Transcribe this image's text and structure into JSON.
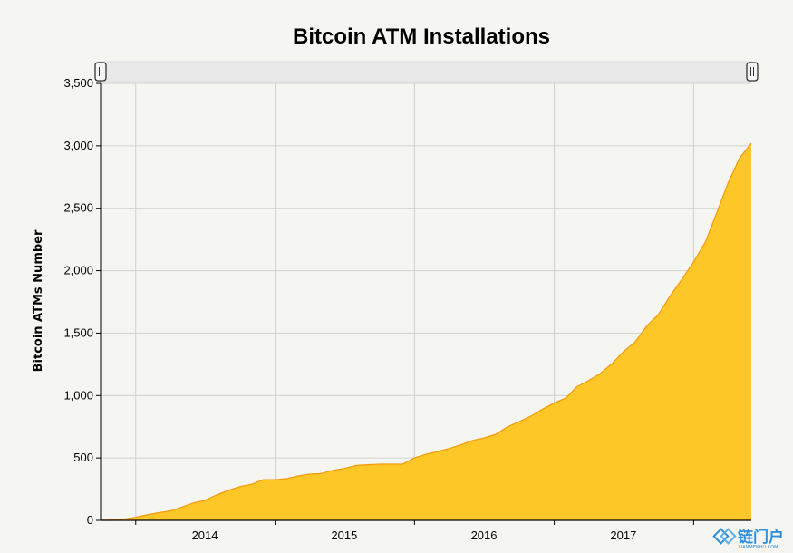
{
  "chart_data": {
    "type": "area",
    "title": "Bitcoin ATM Installations",
    "xlabel": "",
    "ylabel": "Bitcoin ATMs Number",
    "ylim": [
      0,
      3500
    ],
    "yticks": [
      "0",
      "500",
      "1,000",
      "1,500",
      "2,000",
      "2,500",
      "3,000",
      "3,500"
    ],
    "xtick_labels": [
      "2014",
      "2015",
      "2016",
      "2017"
    ],
    "grid": true,
    "colors": {
      "fill": "#fec728",
      "line": "#f39c12",
      "grid": "#d0d0cc",
      "background": "#f5f5f1"
    },
    "series": [
      {
        "x": [
          "2013-10-01",
          "2013-11-01",
          "2013-12-01",
          "2014-01-01",
          "2014-02-01",
          "2014-03-01",
          "2014-04-01",
          "2014-05-01",
          "2014-06-01",
          "2014-07-01",
          "2014-08-01",
          "2014-09-01",
          "2014-10-01",
          "2014-11-01",
          "2014-12-01",
          "2015-01-01",
          "2015-02-01",
          "2015-03-01",
          "2015-04-01",
          "2015-05-01",
          "2015-06-01",
          "2015-07-01",
          "2015-08-01",
          "2015-09-01",
          "2015-10-01",
          "2015-11-01",
          "2015-12-01",
          "2016-01-01",
          "2016-02-01",
          "2016-03-01",
          "2016-04-01",
          "2016-05-01",
          "2016-06-01",
          "2016-07-01",
          "2016-08-01",
          "2016-09-01",
          "2016-10-01",
          "2016-11-01",
          "2016-12-01",
          "2017-01-01",
          "2017-02-01",
          "2017-03-01",
          "2017-04-01",
          "2017-05-01",
          "2017-06-01",
          "2017-07-01",
          "2017-08-01",
          "2017-09-01",
          "2017-10-01",
          "2017-11-01",
          "2017-12-01",
          "2018-01-01",
          "2018-02-01",
          "2018-03-01",
          "2018-04-01",
          "2018-05-01",
          "2018-06-01"
        ],
        "values": [
          0,
          2,
          10,
          25,
          45,
          60,
          75,
          105,
          140,
          160,
          205,
          240,
          270,
          290,
          325,
          325,
          335,
          355,
          370,
          375,
          400,
          415,
          440,
          445,
          450,
          450,
          450,
          500,
          530,
          550,
          575,
          605,
          640,
          660,
          690,
          750,
          790,
          835,
          890,
          940,
          980,
          1070,
          1120,
          1175,
          1255,
          1350,
          1430,
          1560,
          1650,
          1800,
          1930,
          2070,
          2230,
          2450,
          2700,
          2900,
          3020
        ]
      }
    ]
  },
  "slider": {
    "left_handle_icon": "grip-icon",
    "right_handle_icon": "grip-icon"
  },
  "watermark": {
    "text": "链门户",
    "subtext": "LIANMENHU.COM"
  }
}
